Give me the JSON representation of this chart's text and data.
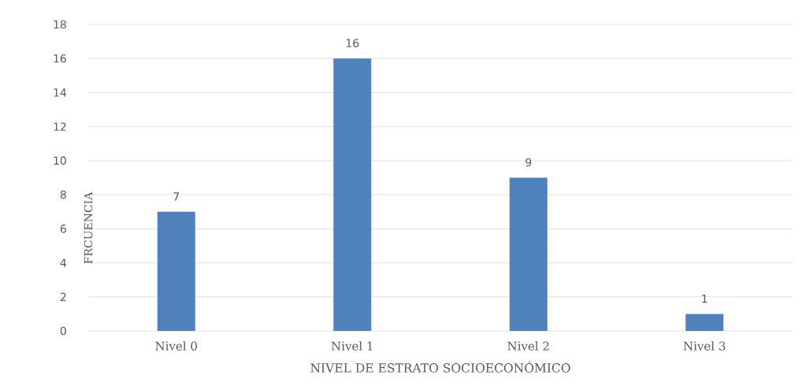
{
  "chart_data": {
    "type": "bar",
    "categories": [
      "Nivel 0",
      "Nivel 1",
      "Nivel 2",
      "Nivel 3"
    ],
    "values": [
      7,
      16,
      9,
      1
    ],
    "color": "#4f81bd",
    "xlabel": "NIVEL DE ESTRATO SOCIOECONÓMICO",
    "ylabel": "FRCUENCIA",
    "ylim": [
      0,
      18
    ],
    "yticks": [
      0,
      2,
      4,
      6,
      8,
      10,
      12,
      14,
      16,
      18
    ],
    "grid": "y",
    "data_labels": true
  }
}
